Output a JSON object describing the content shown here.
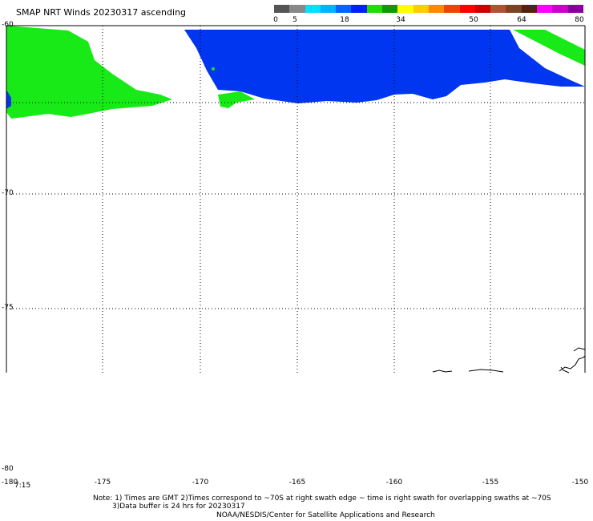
{
  "title": "SMAP NRT Winds 20230317 ascending",
  "colorbar": {
    "colors": [
      "#555555",
      "#888888",
      "#00e0ff",
      "#00b4ff",
      "#0066ff",
      "#0020ff",
      "#22dd00",
      "#119900",
      "#ffff00",
      "#ffcc00",
      "#ff8800",
      "#ee4400",
      "#ff0000",
      "#cc0000",
      "#aa5533",
      "#7a4422",
      "#552211",
      "#ff00ff",
      "#cc00cc",
      "#880099"
    ],
    "ticks": [
      "0",
      "5",
      "18",
      "34",
      "50",
      "64",
      "80"
    ]
  },
  "map": {
    "lat_labels": [
      "-60",
      "-70",
      "-75",
      "-80"
    ],
    "lon_labels": [
      "-180",
      "-175",
      "-170",
      "-165",
      "-160",
      "-155",
      "-150"
    ],
    "time": "7:15",
    "colors": {
      "low_wind": "#0036f0",
      "mid_wind": "#18ea18",
      "coast": "#000000",
      "grid": "#000000"
    }
  },
  "notes": {
    "line1": "Note: 1) Times are GMT  2)Times correspond to ~70S at right swath edge ~ time is right swath for overlapping swaths at ~70S",
    "line2": "3)Data buffer is 24 hrs for 20230317",
    "line3": "NOAA/NESDIS/Center for Satellite Applications and Research"
  }
}
